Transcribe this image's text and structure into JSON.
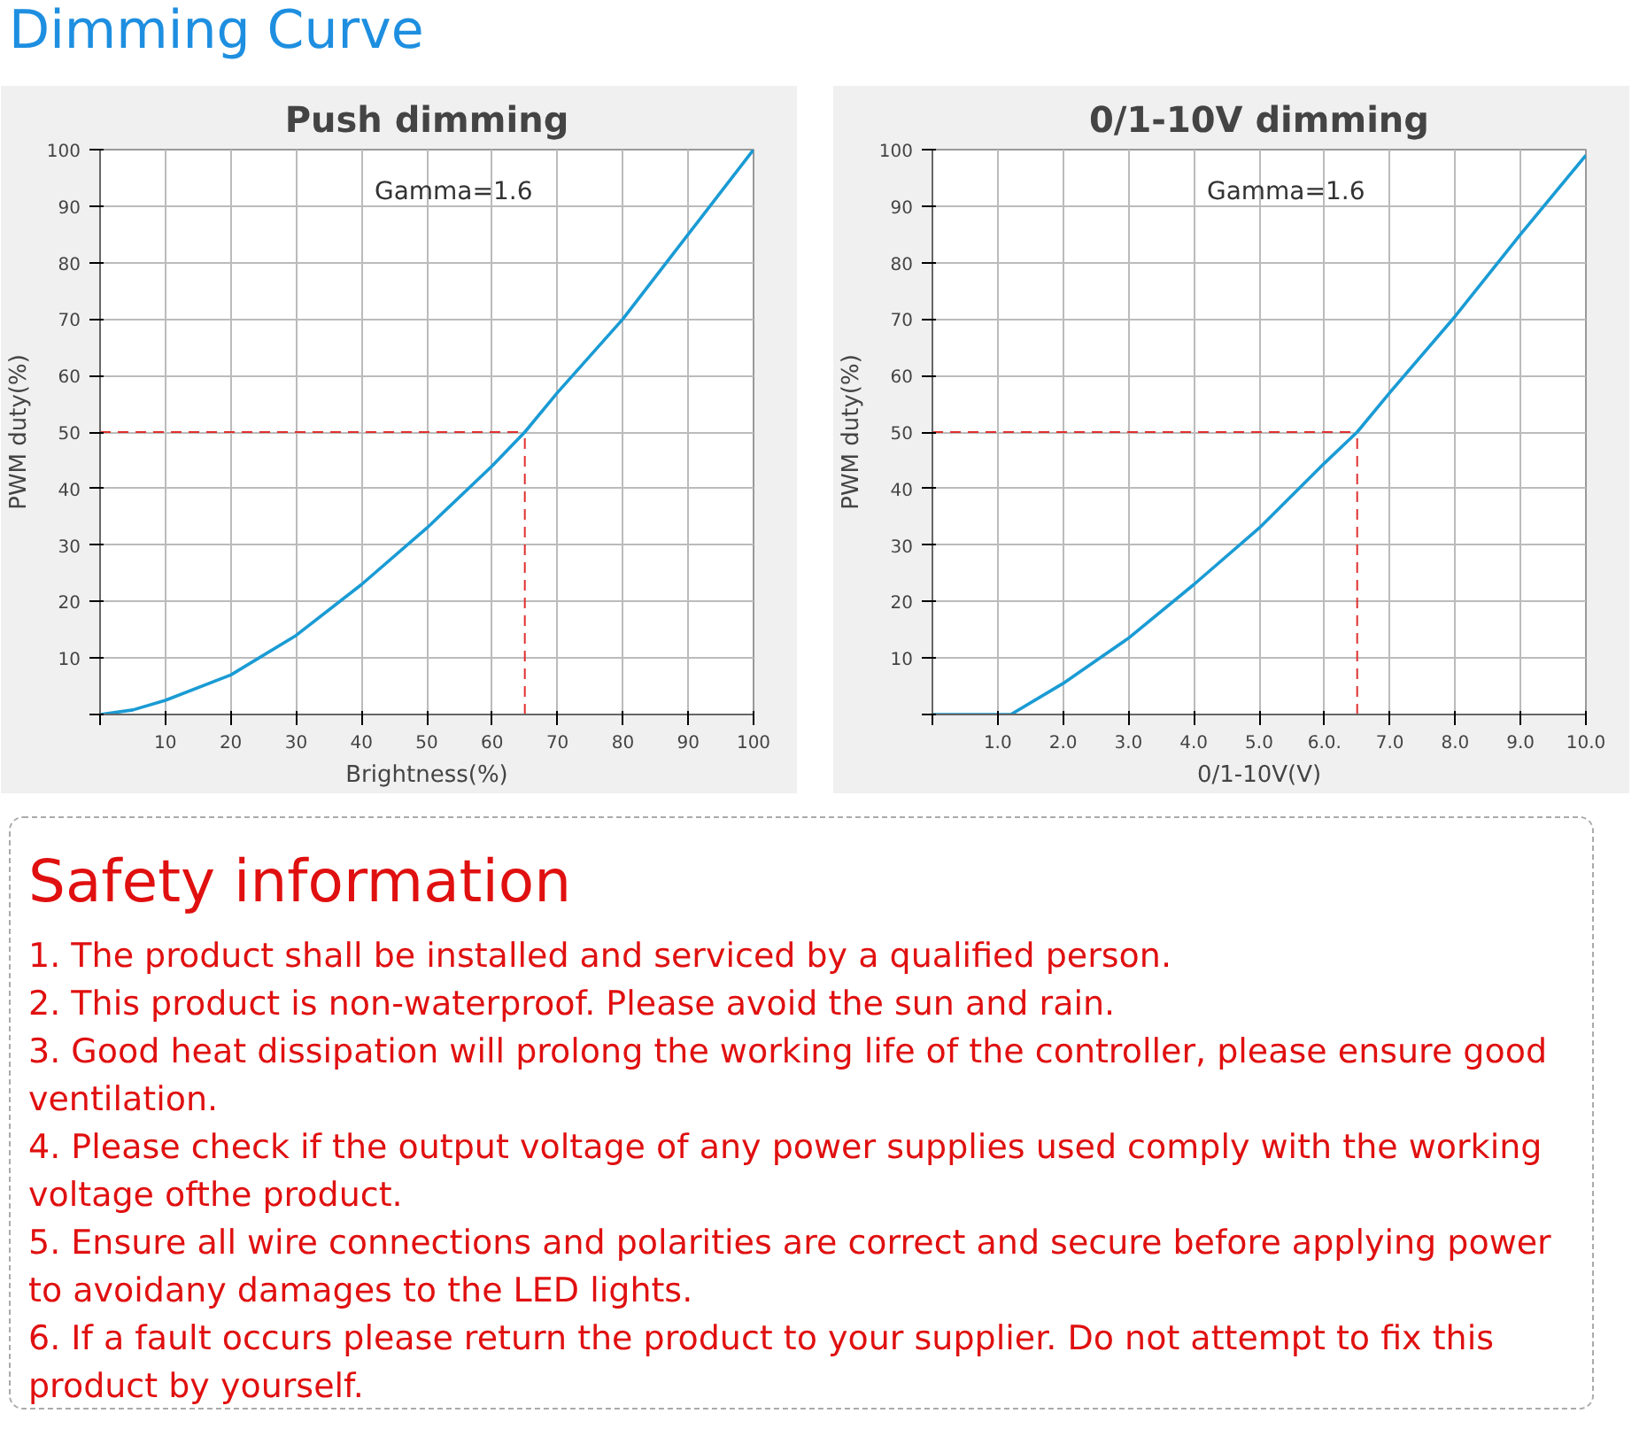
{
  "chart_data": [
    {
      "type": "line",
      "title": "Dimming Curve",
      "subtitle": "Push dimming",
      "xlabel": "Brightness(%)",
      "ylabel": "PWM duty(%)",
      "annotations": [
        "Gamma=1.6"
      ],
      "x": [
        0,
        5,
        10,
        20,
        30,
        40,
        50,
        60,
        65,
        70,
        80,
        90,
        100
      ],
      "series": [
        {
          "color": "#1a9bd4",
          "values": [
            0,
            0.8,
            2.5,
            7,
            14,
            23,
            33,
            44,
            50,
            57,
            70,
            85,
            100
          ]
        }
      ],
      "xlim": [
        0,
        100
      ],
      "ylim": [
        0,
        100
      ],
      "xticks": [
        {
          "value": 0,
          "label": null
        },
        10,
        20,
        30,
        40,
        50,
        60,
        70,
        80,
        90,
        100
      ],
      "yticks": [
        {
          "value": 0,
          "label": null
        },
        10,
        20,
        30,
        40,
        50,
        60,
        70,
        80,
        90,
        100
      ],
      "grid": true,
      "marker": "none",
      "line_style": "solid",
      "ref_lines": [
        {
          "axis": "y",
          "value": 50,
          "color": "#e03030",
          "line_style": "dashed"
        },
        {
          "axis": "x",
          "value": 65,
          "color": "#e03030",
          "line_style": "dashed"
        }
      ]
    },
    {
      "type": "line",
      "subtitle": "0/1-10V dimming",
      "xlabel": "0/1-10V(V)",
      "ylabel": "PWM duty(%)",
      "annotations": [
        "Gamma=1.6"
      ],
      "x": [
        0,
        1.2,
        2,
        3,
        4,
        5,
        6,
        6.5,
        7,
        8,
        9,
        10
      ],
      "series": [
        {
          "color": "#1a9bd4",
          "values": [
            0,
            0,
            5.5,
            13.5,
            23,
            33,
            44.5,
            50,
            57,
            70.5,
            85,
            99
          ]
        }
      ],
      "xlim": [
        0,
        10
      ],
      "ylim": [
        0,
        100
      ],
      "xticks": [
        {
          "value": 0,
          "label": null
        },
        {
          "value": 1,
          "label": "1.0"
        },
        {
          "value": 2,
          "label": "2.0"
        },
        {
          "value": 3,
          "label": "3.0"
        },
        {
          "value": 4,
          "label": "4.0"
        },
        {
          "value": 5,
          "label": "5.0"
        },
        {
          "value": 6,
          "label": "6.0."
        },
        {
          "value": 7,
          "label": "7.0"
        },
        {
          "value": 8,
          "label": "8.0"
        },
        {
          "value": 9,
          "label": "9.0"
        },
        {
          "value": 10,
          "label": "10.0"
        }
      ],
      "yticks": [
        {
          "value": 0,
          "label": null
        },
        10,
        20,
        30,
        40,
        50,
        60,
        70,
        80,
        90,
        100
      ],
      "grid": true,
      "marker": "none",
      "line_style": "solid",
      "ref_lines": [
        {
          "axis": "y",
          "value": 50,
          "color": "#e03030",
          "line_style": "dashed"
        },
        {
          "axis": "x",
          "value": 6.5,
          "color": "#e03030",
          "line_style": "dashed"
        }
      ]
    },
    {
      "type": "other",
      "title": "Safety information",
      "annotations": [
        "1. The product shall be installed and serviced by a qualified person.",
        "2. This product is non-waterproof. Please avoid the sun and rain.",
        "3. Good heat dissipation will prolong the working life of the controller, please ensure good ventilation.",
        "4. Please check if the output voltage of any power supplies used comply with the working voltage ofthe product.",
        "5. Ensure all wire connections and polarities are correct and secure before applying power to avoidany damages to the LED lights.",
        "6. If a fault occurs please return the product to your supplier. Do not attempt to fix this product by yourself."
      ]
    }
  ]
}
